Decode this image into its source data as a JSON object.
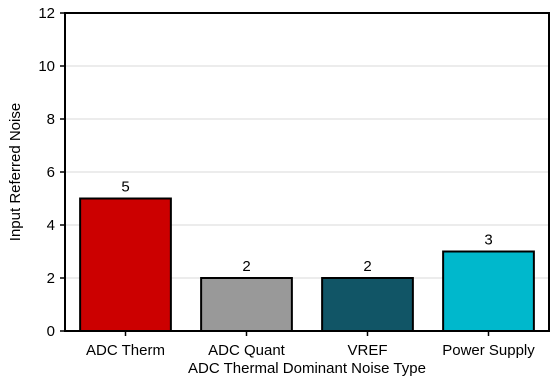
{
  "chart_data": {
    "type": "bar",
    "title": "",
    "xlabel": "ADC Thermal Dominant Noise Type",
    "ylabel": "Input Referred Noise",
    "categories": [
      "ADC Therm",
      "ADC Quant",
      "VREF",
      "Power Supply"
    ],
    "values": [
      5,
      2,
      2,
      3
    ],
    "data_labels": [
      "5",
      "2",
      "2",
      "3"
    ],
    "colors": [
      "#cc0000",
      "#999999",
      "#115566",
      "#00b8cc"
    ],
    "ylim": [
      0,
      12
    ],
    "yticks": [
      0,
      2,
      4,
      6,
      8,
      10,
      12
    ],
    "grid": true,
    "legend": "none"
  }
}
